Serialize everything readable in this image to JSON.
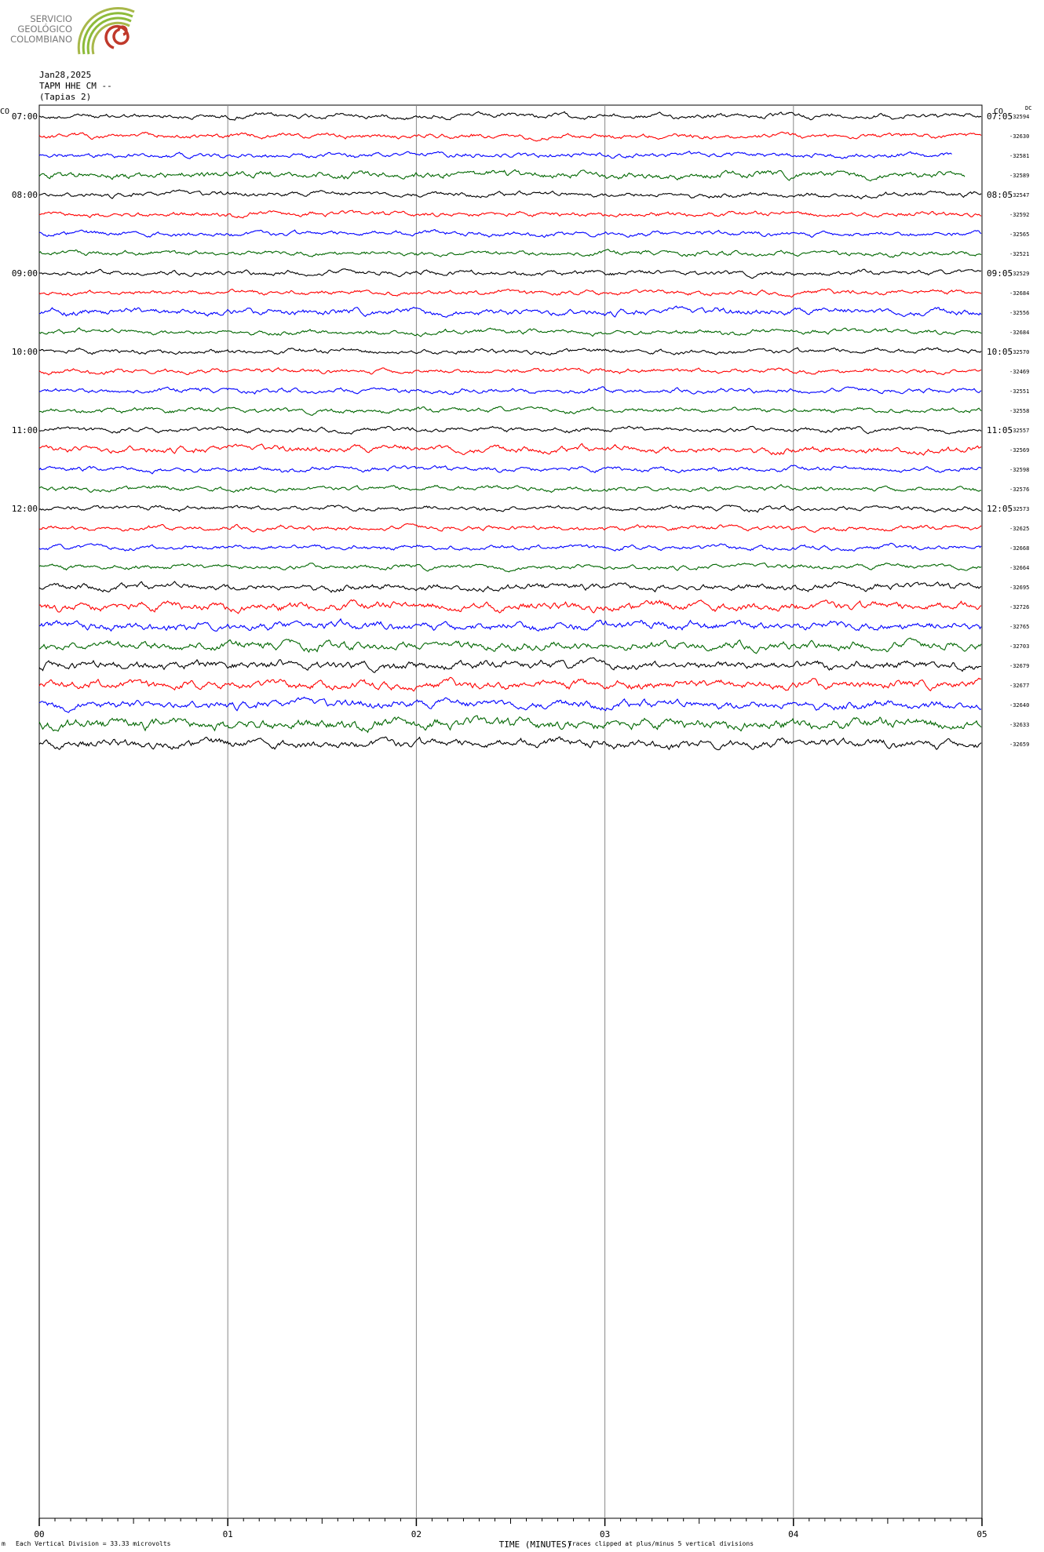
{
  "logo": {
    "lines": [
      "SERVICIO",
      "GEOLÓGICO",
      "COLOMBIANO"
    ],
    "colors": {
      "text": "#7a7a7a",
      "arc_green": "#8dbb3a",
      "arc_olive": "#a8b84a",
      "spiral_red": "#c0392b"
    }
  },
  "header": {
    "date": "Jan28,2025",
    "station": "TAPM HHE CM --",
    "site": "(Tapias 2)"
  },
  "corner_labels": {
    "left": "CO",
    "right": "CO",
    "dc": "DC"
  },
  "footer": {
    "xlabel": "TIME (MINUTES)",
    "scale_note": "Each Vertical Division =   33.33 microvolts",
    "clip_note": "Traces clipped at plus/minus 5 vertical divisions",
    "corner_mark": "m"
  },
  "chart_data": {
    "type": "line",
    "title": "",
    "xlabel": "TIME (MINUTES)",
    "ylabel": "",
    "x_ticks": [
      "00",
      "01",
      "02",
      "03",
      "04",
      "05"
    ],
    "xlim": [
      0,
      5
    ],
    "grid_x": true,
    "left_hour_labels": [
      "07:00",
      "08:00",
      "09:00",
      "10:00",
      "11:00",
      "12:00"
    ],
    "right_hour_labels": [
      "07:05",
      "08:05",
      "09:05",
      "10:05",
      "11:05",
      "12:05"
    ],
    "trace_colors": [
      "#000000",
      "#ff0000",
      "#0000ff",
      "#006600"
    ],
    "dc_offsets": [
      "-32594",
      "-32630",
      "-32581",
      "-32589",
      "-32547",
      "-32592",
      "-32565",
      "-32521",
      "-32529",
      "-32684",
      "-32556",
      "-32684",
      "-32570",
      "-32469",
      "-32551",
      "-32558",
      "-32557",
      "-32569",
      "-32598",
      "-32576",
      "-32573",
      "-32625",
      "-32668",
      "-32664",
      "-32695",
      "-32726",
      "-32765",
      "-32703",
      "-32679",
      "-32677",
      "-32640",
      "-32633",
      "-32659"
    ],
    "trace_interval_minutes": 15,
    "trace_count": 33
  }
}
